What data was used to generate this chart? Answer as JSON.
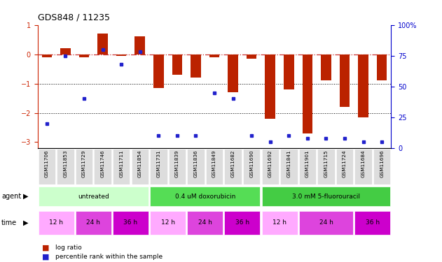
{
  "title": "GDS848 / 11235",
  "samples": [
    "GSM11706",
    "GSM11853",
    "GSM11729",
    "GSM11746",
    "GSM11711",
    "GSM11854",
    "GSM11731",
    "GSM11839",
    "GSM11836",
    "GSM11849",
    "GSM11682",
    "GSM11690",
    "GSM11692",
    "GSM11841",
    "GSM11901",
    "GSM11715",
    "GSM11724",
    "GSM11684",
    "GSM11696"
  ],
  "log_ratio": [
    -0.1,
    0.2,
    -0.1,
    0.7,
    -0.05,
    0.6,
    -1.15,
    -0.7,
    -0.8,
    -0.1,
    -1.3,
    -0.15,
    -2.2,
    -1.2,
    -2.7,
    -0.9,
    -1.8,
    -2.15,
    -0.9
  ],
  "percentile_rank": [
    20,
    75,
    40,
    80,
    68,
    78,
    10,
    10,
    10,
    45,
    40,
    10,
    5,
    10,
    8,
    8,
    8,
    5,
    5
  ],
  "ylim": [
    -3.2,
    1.0
  ],
  "y_left_ticks": [
    1,
    0,
    -1,
    -2,
    -3
  ],
  "y_right_ticks": [
    100,
    75,
    50,
    25,
    0
  ],
  "bar_color": "#bb2200",
  "dot_color": "#2222cc",
  "ref_line_color": "#cc3333",
  "agents": [
    {
      "label": "untreated",
      "start": 0,
      "end": 6,
      "color": "#ccffcc"
    },
    {
      "label": "0.4 uM doxorubicin",
      "start": 6,
      "end": 12,
      "color": "#55dd55"
    },
    {
      "label": "3.0 mM 5-fluorouracil",
      "start": 12,
      "end": 19,
      "color": "#44cc44"
    }
  ],
  "times": [
    {
      "label": "12 h",
      "start": 0,
      "end": 2,
      "color": "#ffaaff"
    },
    {
      "label": "24 h",
      "start": 2,
      "end": 4,
      "color": "#dd44dd"
    },
    {
      "label": "36 h",
      "start": 4,
      "end": 6,
      "color": "#cc00cc"
    },
    {
      "label": "12 h",
      "start": 6,
      "end": 8,
      "color": "#ffaaff"
    },
    {
      "label": "24 h",
      "start": 8,
      "end": 10,
      "color": "#dd44dd"
    },
    {
      "label": "36 h",
      "start": 10,
      "end": 12,
      "color": "#cc00cc"
    },
    {
      "label": "12 h",
      "start": 12,
      "end": 14,
      "color": "#ffaaff"
    },
    {
      "label": "24 h",
      "start": 14,
      "end": 17,
      "color": "#dd44dd"
    },
    {
      "label": "36 h",
      "start": 17,
      "end": 19,
      "color": "#cc00cc"
    }
  ],
  "legend_color_red": "#bb2200",
  "legend_color_blue": "#2222cc"
}
